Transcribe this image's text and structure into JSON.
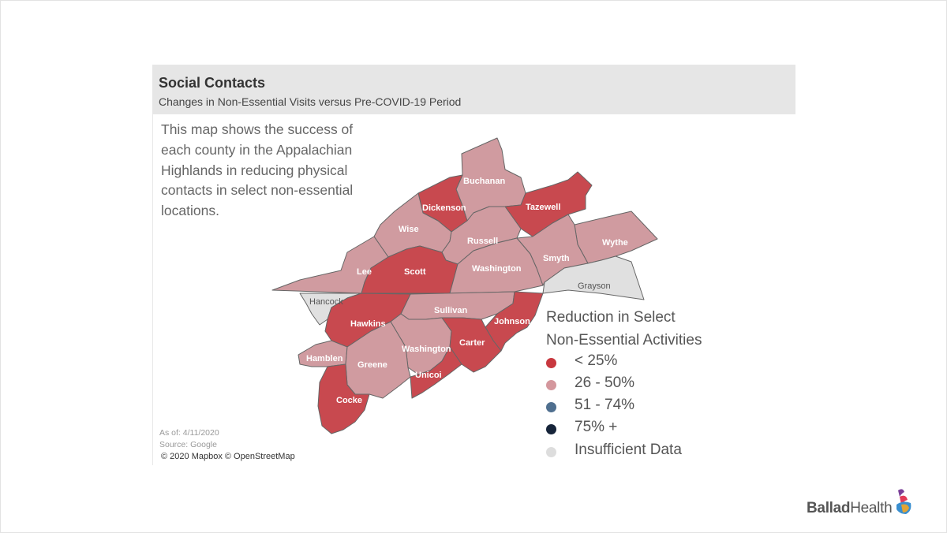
{
  "header": {
    "title": "Social Contacts",
    "subtitle": "Changes in Non-Essential Visits versus Pre-COVID-19 Period"
  },
  "description": "This map shows the success of each county in the Appalachian Highlands in reducing physical contacts in select non-essential locations.",
  "counties": [
    {
      "name": "Buchanan",
      "category": "26 - 50%"
    },
    {
      "name": "Dickenson",
      "category": "< 25%"
    },
    {
      "name": "Tazewell",
      "category": "< 25%"
    },
    {
      "name": "Wise",
      "category": "26 - 50%"
    },
    {
      "name": "Russell",
      "category": "26 - 50%"
    },
    {
      "name": "Wythe",
      "category": "26 - 50%"
    },
    {
      "name": "Lee",
      "category": "26 - 50%"
    },
    {
      "name": "Scott",
      "category": "< 25%"
    },
    {
      "name": "Washington",
      "category": "26 - 50%"
    },
    {
      "name": "Smyth",
      "category": "26 - 50%"
    },
    {
      "name": "Grayson",
      "category": "Insufficient Data"
    },
    {
      "name": "Hancock",
      "category": "Insufficient Data"
    },
    {
      "name": "Sullivan",
      "category": "26 - 50%"
    },
    {
      "name": "Hawkins",
      "category": "< 25%"
    },
    {
      "name": "Johnson",
      "category": "< 25%"
    },
    {
      "name": "Washington",
      "category": "26 - 50%"
    },
    {
      "name": "Carter",
      "category": "< 25%"
    },
    {
      "name": "Hamblen",
      "category": "26 - 50%"
    },
    {
      "name": "Greene",
      "category": "26 - 50%"
    },
    {
      "name": "Unicoi",
      "category": "< 25%"
    },
    {
      "name": "Cocke",
      "category": "< 25%"
    }
  ],
  "legend": {
    "title_line1": "Reduction in Select",
    "title_line2": "Non-Essential Activities",
    "items": [
      {
        "label": "< 25%",
        "color": "#c8383f"
      },
      {
        "label": "26 - 50%",
        "color": "#d4979d"
      },
      {
        "label": "51 - 74%",
        "color": "#4f6f8f"
      },
      {
        "label": "75% +",
        "color": "#16243a"
      },
      {
        "label": "Insufficient Data",
        "color": "#dddddd"
      }
    ]
  },
  "colors": {
    "low": "#c8494f",
    "mid": "#d09ba0",
    "insufficient": "#e0e0e0",
    "border": "#666666"
  },
  "footer": {
    "as_of": "As of: 4/11/2020",
    "source": "Source: Google",
    "attribution": "© 2020 Mapbox © OpenStreetMap"
  },
  "brand": {
    "name_bold": "Ballad",
    "name_regular": "Health",
    "logo_icon": "ballad-health-logo-icon"
  }
}
